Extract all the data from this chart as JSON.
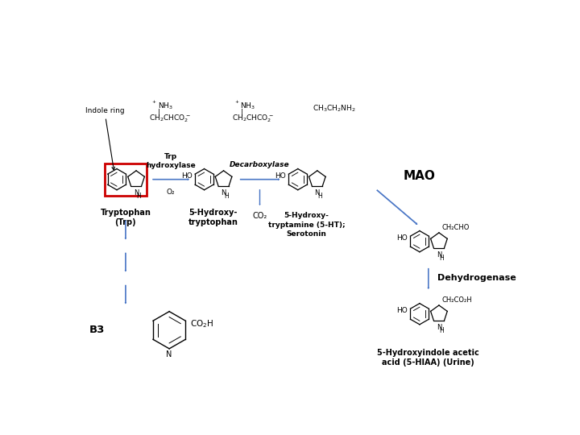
{
  "bg_color": "#ffffff",
  "arrow_color": "#4472C4",
  "text_color": "#000000",
  "red_box_color": "#CC0000",
  "label_indole_ring": "Indole ring",
  "label_trp_hydroxylase": "Trp\nhydroxylase",
  "label_o2": "O₂",
  "label_decarboxylase": "Decarboxylase",
  "label_co2": "CO₂",
  "label_mao": "MAO",
  "label_dehydrogenase": "Dehydrogenase",
  "label_tryptophan": "Tryptophan\n(Trp)",
  "label_5htp": "5-Hydroxy-\ntryptophan",
  "label_serotonin": "5-Hydroxy-\ntryptamine (5-HT);\nSerotonin",
  "label_5hiaa": "5-Hydroxyindole acetic\nacid (5-HIAA) (Urine)",
  "label_b3": "B3",
  "aldehyde_formula": "CH₂CHO",
  "hiaa_formula": "CH₂CO₂H"
}
